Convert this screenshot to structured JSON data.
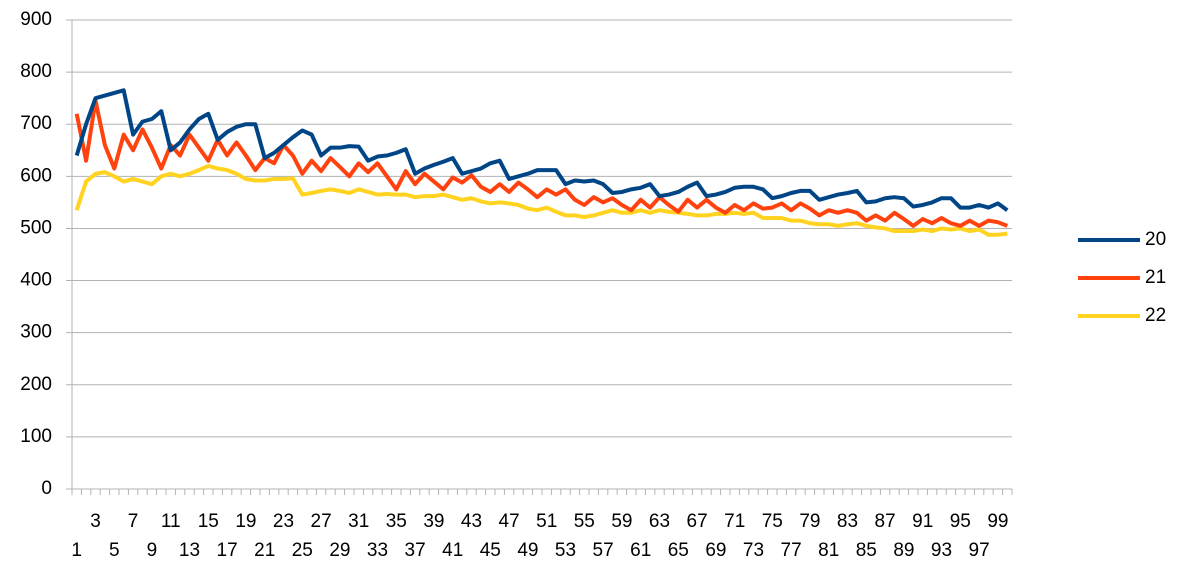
{
  "chart_data": {
    "type": "line",
    "categories": [
      1,
      null,
      3,
      null,
      5,
      null,
      7,
      null,
      9,
      null,
      11,
      null,
      13,
      null,
      15,
      null,
      17,
      null,
      19,
      null,
      21,
      null,
      23,
      null,
      25,
      null,
      27,
      null,
      29,
      null,
      31,
      null,
      33,
      null,
      35,
      null,
      37,
      null,
      39,
      null,
      41,
      null,
      43,
      null,
      45,
      null,
      47,
      null,
      49,
      null,
      51,
      null,
      53,
      null,
      55,
      null,
      57,
      null,
      59,
      null,
      61,
      null,
      63,
      null,
      65,
      null,
      67,
      null,
      69,
      null,
      71,
      null,
      73,
      null,
      75,
      null,
      77,
      null,
      79,
      null,
      81,
      null,
      83,
      null,
      85,
      null,
      87,
      null,
      89,
      null,
      91,
      null,
      93,
      null,
      95,
      null,
      97,
      null,
      99,
      null
    ],
    "series": [
      {
        "name": "20",
        "color": "#004586",
        "values": [
          640,
          700,
          750,
          755,
          760,
          765,
          680,
          705,
          710,
          725,
          650,
          665,
          690,
          710,
          720,
          670,
          685,
          695,
          700,
          700,
          635,
          645,
          660,
          675,
          688,
          680,
          640,
          655,
          655,
          658,
          657,
          630,
          638,
          640,
          645,
          652,
          605,
          615,
          622,
          628,
          635,
          605,
          610,
          615,
          625,
          630,
          595,
          600,
          605,
          612,
          612,
          612,
          585,
          592,
          590,
          592,
          585,
          568,
          570,
          575,
          578,
          585,
          562,
          565,
          570,
          580,
          588,
          562,
          565,
          570,
          578,
          580,
          580,
          575,
          558,
          562,
          568,
          572,
          572,
          555,
          560,
          565,
          568,
          572,
          550,
          552,
          558,
          560,
          558,
          542,
          545,
          550,
          558,
          558,
          540,
          540,
          545,
          540,
          548,
          535
        ]
      },
      {
        "name": "21",
        "color": "#ff420e",
        "values": [
          720,
          630,
          745,
          660,
          615,
          680,
          650,
          690,
          655,
          615,
          660,
          640,
          680,
          655,
          630,
          670,
          640,
          665,
          640,
          612,
          635,
          625,
          660,
          640,
          605,
          630,
          610,
          635,
          618,
          600,
          625,
          608,
          625,
          600,
          575,
          610,
          585,
          605,
          590,
          575,
          598,
          588,
          602,
          580,
          570,
          585,
          570,
          588,
          575,
          560,
          575,
          565,
          575,
          555,
          545,
          560,
          550,
          558,
          545,
          535,
          555,
          540,
          560,
          545,
          532,
          555,
          540,
          555,
          540,
          530,
          545,
          535,
          548,
          538,
          540,
          548,
          535,
          548,
          538,
          525,
          535,
          530,
          535,
          530,
          515,
          525,
          515,
          530,
          518,
          505,
          518,
          510,
          520,
          510,
          505,
          515,
          505,
          515,
          512,
          505
        ]
      },
      {
        "name": "22",
        "color": "#ffd320",
        "values": [
          535,
          590,
          605,
          608,
          600,
          590,
          595,
          590,
          585,
          600,
          605,
          600,
          605,
          612,
          620,
          615,
          612,
          605,
          595,
          592,
          592,
          595,
          595,
          596,
          565,
          568,
          572,
          575,
          572,
          568,
          575,
          570,
          565,
          566,
          565,
          565,
          560,
          562,
          562,
          565,
          560,
          555,
          558,
          552,
          548,
          550,
          548,
          545,
          538,
          535,
          540,
          532,
          525,
          525,
          522,
          525,
          530,
          535,
          530,
          530,
          535,
          530,
          535,
          532,
          530,
          528,
          525,
          525,
          528,
          528,
          530,
          528,
          530,
          520,
          520,
          520,
          515,
          515,
          510,
          508,
          508,
          505,
          508,
          510,
          505,
          502,
          500,
          495,
          495,
          495,
          498,
          495,
          500,
          498,
          500,
          495,
          498,
          488,
          488,
          490
        ]
      }
    ],
    "ylim": [
      0,
      900
    ],
    "yticks": [
      0,
      100,
      200,
      300,
      400,
      500,
      600,
      700,
      800,
      900
    ],
    "grid": true,
    "legend": "right"
  }
}
